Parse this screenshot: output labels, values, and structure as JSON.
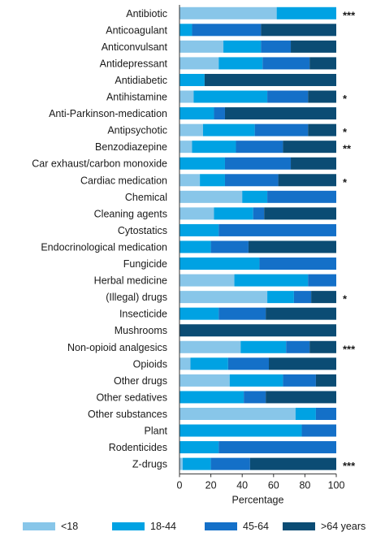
{
  "chart_data": {
    "type": "bar",
    "orientation": "horizontal",
    "stacked": true,
    "title": "",
    "xlabel": "Percentage",
    "ylabel": "",
    "xlim": [
      0,
      100
    ],
    "xticks": [
      "0",
      "20",
      "40",
      "60",
      "80",
      "100"
    ],
    "grid": false,
    "legend_position": "bottom",
    "categories": [
      "Antibiotic",
      "Anticoagulant",
      "Anticonvulsant",
      "Antidepressant",
      "Antidiabetic",
      "Antihistamine",
      "Anti-Parkinson-medication",
      "Antipsychotic",
      "Benzodiazepine",
      "Car exhaust/carbon monoxide",
      "Cardiac medication",
      "Chemical",
      "Cleaning agents",
      "Cytostatics",
      "Endocrinological medication",
      "Fungicide",
      "Herbal medicine",
      "(Illegal) drugs",
      "Insecticide",
      "Mushrooms",
      "Non-opioid analgesics",
      "Opioids",
      "Other drugs",
      "Other sedatives",
      "Other substances",
      "Plant",
      "Rodenticides",
      "Z-drugs"
    ],
    "significance": [
      "***",
      "",
      "",
      "",
      "",
      "*",
      "",
      "*",
      "**",
      "",
      "*",
      "",
      "",
      "",
      "",
      "",
      "",
      "*",
      "",
      "",
      "***",
      "",
      "",
      "",
      "",
      "",
      "",
      "***"
    ],
    "series": [
      {
        "name": "<18",
        "color": "#88c6e9",
        "values": [
          62,
          0,
          28,
          25,
          0,
          9,
          0,
          15,
          8,
          0,
          13,
          40,
          22,
          0,
          0,
          0,
          35,
          56,
          0,
          0,
          39,
          7,
          32,
          0,
          74,
          0,
          0,
          2
        ]
      },
      {
        "name": "18-44",
        "color": "#00a2e3",
        "values": [
          38,
          8,
          24,
          28,
          16,
          47,
          22,
          33,
          28,
          29,
          16,
          16,
          25,
          25,
          20,
          51,
          47,
          17,
          25,
          0,
          29,
          24,
          34,
          41,
          13,
          78,
          25,
          18
        ]
      },
      {
        "name": "45-64",
        "color": "#1470c8",
        "values": [
          0,
          44,
          19,
          30,
          0,
          26,
          7,
          34,
          30,
          42,
          34,
          44,
          7,
          75,
          24,
          49,
          18,
          11,
          30,
          0,
          15,
          26,
          21,
          14,
          13,
          22,
          75,
          25
        ]
      },
      {
        "name": ">64 years",
        "color": "#0b4c74",
        "values": [
          0,
          48,
          29,
          17,
          84,
          18,
          71,
          18,
          34,
          29,
          37,
          0,
          46,
          0,
          56,
          0,
          0,
          16,
          45,
          100,
          17,
          43,
          13,
          45,
          0,
          0,
          0,
          55
        ]
      }
    ]
  }
}
